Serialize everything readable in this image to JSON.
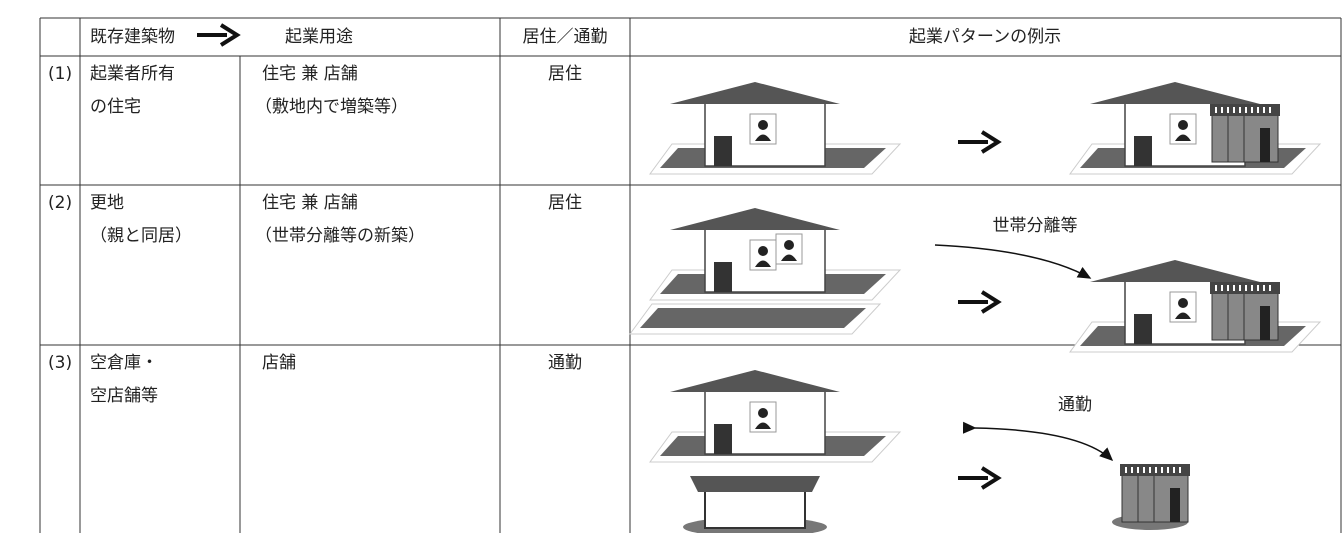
{
  "header": {
    "existing": "既存建築物",
    "use": "起業用途",
    "residence": "居住／通勤",
    "example": "起業パターンの例示"
  },
  "rows": [
    {
      "number": "(1)",
      "existing": [
        "起業者所有",
        "の住宅"
      ],
      "use": [
        "住宅 兼 店舗",
        "（敷地内で増築等）"
      ],
      "residence": "居住"
    },
    {
      "number": "(2)",
      "existing": [
        "更地",
        "（親と同居）"
      ],
      "use": [
        "住宅 兼 店舗",
        "（世帯分離等の新築）"
      ],
      "residence": "居住",
      "annotation": "世帯分離等"
    },
    {
      "number": "(3)",
      "existing": [
        "空倉庫・",
        "空店舗等"
      ],
      "use": [
        "店舗"
      ],
      "residence": "通勤",
      "annotation": "通勤"
    }
  ]
}
